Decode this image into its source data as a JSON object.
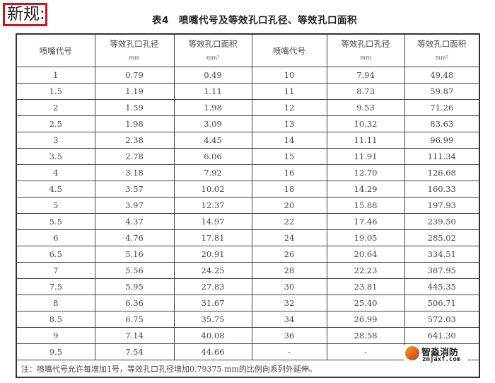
{
  "label": "新规:",
  "title": "表4　喷嘴代号及等效孔口孔径、等效孔口面积",
  "headers": [
    {
      "name": "喷嘴代号",
      "unit": ""
    },
    {
      "name": "等效孔口孔径",
      "unit": "mm"
    },
    {
      "name": "等效孔口面积",
      "unit": "mm²"
    },
    {
      "name": "喷嘴代号",
      "unit": ""
    },
    {
      "name": "等效孔口孔径",
      "unit": "mm"
    },
    {
      "name": "等效孔口面积",
      "unit": "mm²"
    }
  ],
  "rows": [
    [
      "1",
      "0.79",
      "0.49",
      "10",
      "7.94",
      "49.48"
    ],
    [
      "1.5",
      "1.19",
      "1.11",
      "11",
      "8.73",
      "59.87"
    ],
    [
      "2",
      "1.59",
      "1.98",
      "12",
      "9.53",
      "71.26"
    ],
    [
      "2.5",
      "1.98",
      "3.09",
      "13",
      "10.32",
      "83.63"
    ],
    [
      "3",
      "2.38",
      "4.45",
      "14",
      "11.11",
      "96.99"
    ],
    [
      "3.5",
      "2.78",
      "6.06",
      "15",
      "11.91",
      "111.34"
    ],
    [
      "4",
      "3.18",
      "7.92",
      "16",
      "12.70",
      "126.68"
    ],
    [
      "4.5",
      "3.57",
      "10.02",
      "18",
      "14.29",
      "160.33"
    ],
    [
      "5",
      "3.97",
      "12.37",
      "20",
      "15.88",
      "197.93"
    ],
    [
      "5.5",
      "4.37",
      "14.97",
      "22",
      "17.46",
      "239.50"
    ],
    [
      "6",
      "4.76",
      "17.81",
      "24",
      "19.05",
      "285.02"
    ],
    [
      "6.5",
      "5.16",
      "20.91",
      "26",
      "20.64",
      "334.51"
    ],
    [
      "7",
      "5.56",
      "24.25",
      "28",
      "22.23",
      "387.95"
    ],
    [
      "7.5",
      "5.95",
      "27.83",
      "30",
      "23.81",
      "445.35"
    ],
    [
      "8",
      "6.36",
      "31.67",
      "32",
      "25.40",
      "506.71"
    ],
    [
      "8.5",
      "6.75",
      "35.75",
      "34",
      "26.99",
      "572.03"
    ],
    [
      "9",
      "7.14",
      "40.08",
      "36",
      "28.58",
      "641.30"
    ],
    [
      "9.5",
      "7.54",
      "44.66",
      "-",
      "-",
      ""
    ]
  ],
  "note": "注：喷嘴代号允许每增加1号，等效孔口孔径增加0.79375 mm的比例向系列外延伸。",
  "watermark": {
    "name": "智淼消防",
    "url": "zmjaxf.com"
  }
}
